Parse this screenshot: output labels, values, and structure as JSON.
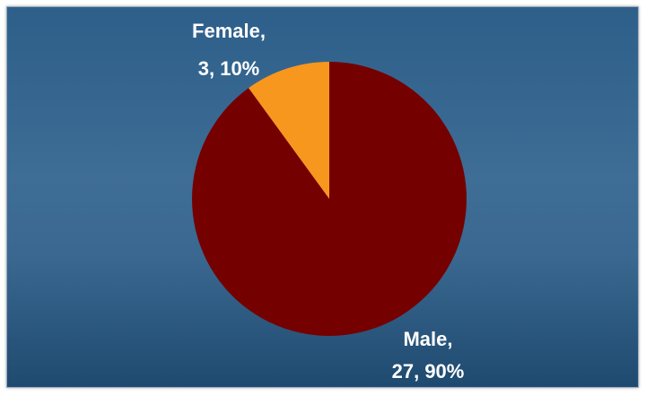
{
  "chart_data": {
    "type": "pie",
    "title": "",
    "slices": [
      {
        "label": "Male",
        "value": 27,
        "percent": "90%",
        "line1": "Male,",
        "line2": "27, 90%",
        "color": "#750000"
      },
      {
        "label": "Female",
        "value": 3,
        "percent": "10%",
        "line1": "Female,",
        "line2": "3, 10%",
        "color": "#f7971e"
      }
    ],
    "legend": "none"
  }
}
